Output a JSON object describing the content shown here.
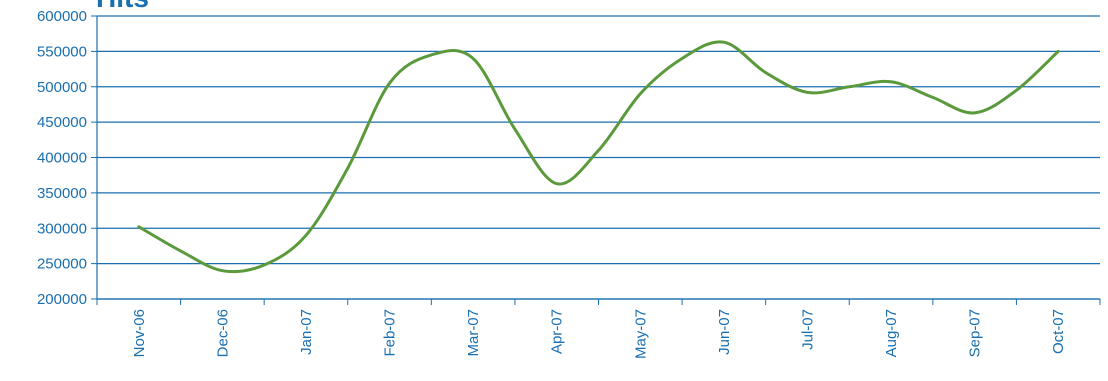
{
  "chart_data": {
    "type": "line",
    "title": "Hits",
    "xlabel": "",
    "ylabel": "",
    "categories": [
      "Nov-06",
      "Dec-06",
      "Jan-07",
      "Feb-07",
      "Mar-07",
      "Apr-07",
      "May-07",
      "Jun-07",
      "Jul-07",
      "Aug-07",
      "Sep-07",
      "Oct-07"
    ],
    "ylim": [
      200000,
      600000
    ],
    "yticks": [
      "600000",
      "550000",
      "500000",
      "450000",
      "400000",
      "350000",
      "300000",
      "250000",
      "200000"
    ],
    "grid": true,
    "legend": "none",
    "series": [
      {
        "name": "",
        "color": "#5a9a3c",
        "x": [
          0,
          0.5,
          1,
          1.5,
          2,
          2.5,
          3,
          3.5,
          4,
          4.5,
          5,
          5.5,
          6,
          6.5,
          7,
          7.5,
          8,
          8.5,
          9,
          9.5,
          10,
          10.5,
          11
        ],
        "values": [
          302000,
          268000,
          240000,
          248000,
          290000,
          385000,
          505000,
          545000,
          540000,
          440000,
          363000,
          410000,
          490000,
          540000,
          563000,
          520000,
          492000,
          500000,
          507000,
          485000,
          463000,
          495000,
          550000
        ]
      }
    ],
    "colors": {
      "axis": "#1a6fb0",
      "grid": "#1a6fb0",
      "text": "#1a6fb0"
    }
  }
}
